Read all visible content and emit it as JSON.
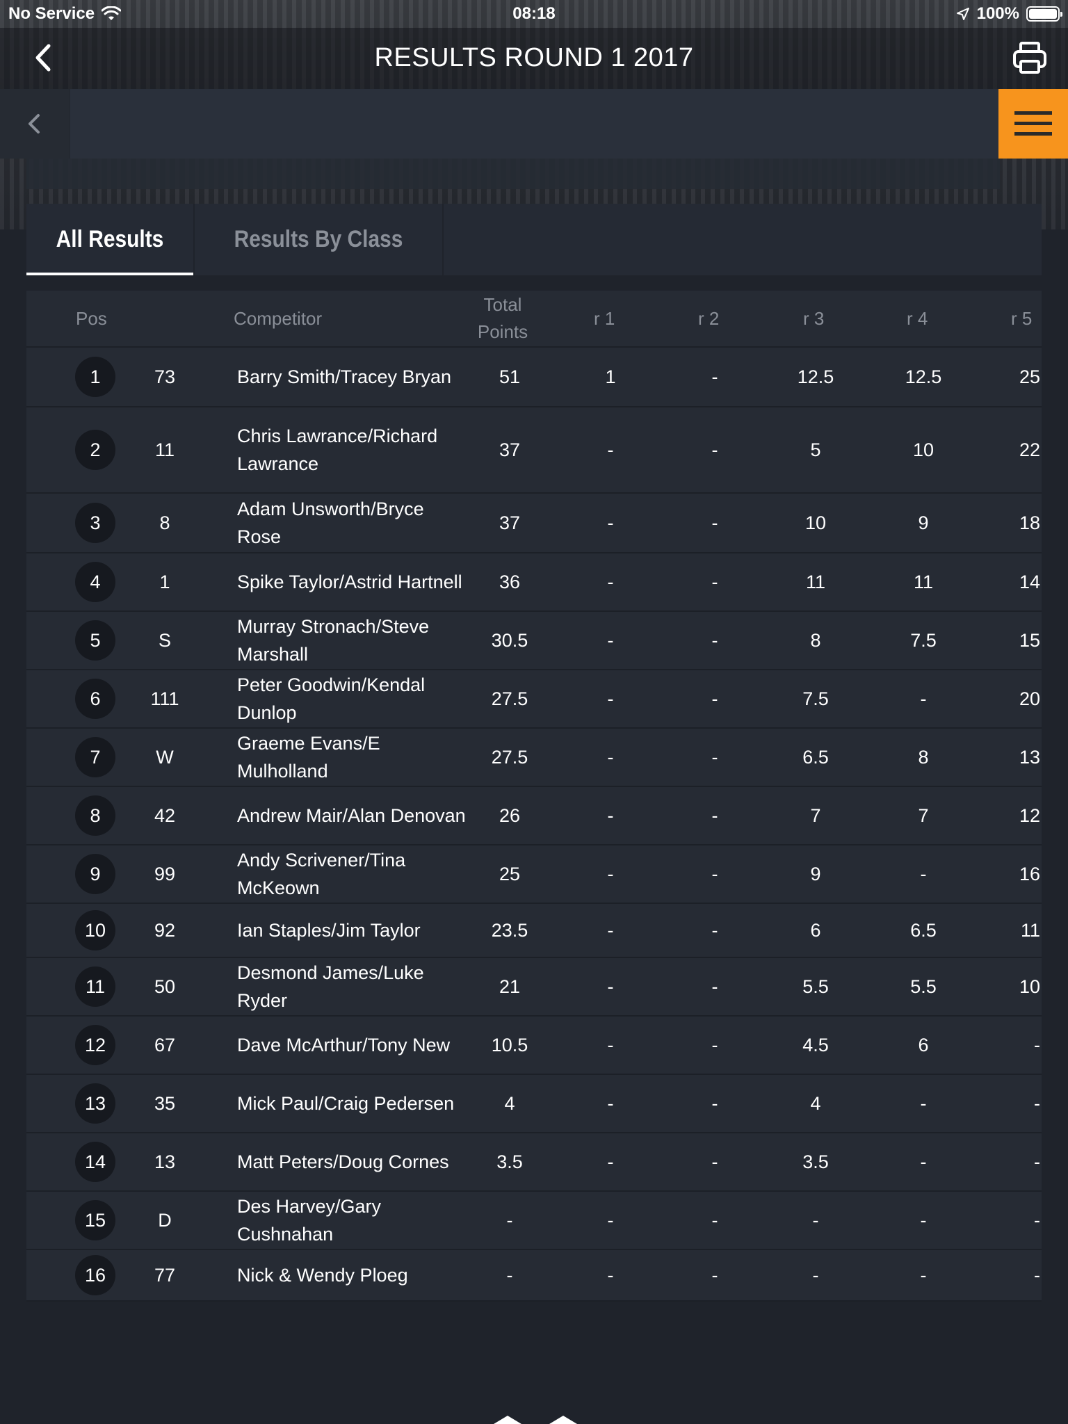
{
  "status": {
    "carrier": "No Service",
    "time": "08:18",
    "battery": "100%"
  },
  "nav": {
    "title": "RESULTS ROUND 1 2017"
  },
  "tabs": [
    {
      "label": "All Results",
      "active": true
    },
    {
      "label": "Results By Class",
      "active": false
    }
  ],
  "table": {
    "headers": {
      "pos": "Pos",
      "competitor": "Competitor",
      "total_line1": "Total",
      "total_line2": "Points",
      "r1": "r 1",
      "r2": "r 2",
      "r3": "r 3",
      "r4": "r 4",
      "r5": "r 5"
    },
    "rows": [
      {
        "pos": "1",
        "num": "73",
        "competitor": "Barry Smith/Tracey Bryan",
        "total": "51",
        "r1": "1",
        "r2": "-",
        "r3": "12.5",
        "r4": "12.5",
        "r5": "25"
      },
      {
        "pos": "2",
        "num": "11",
        "competitor": "Chris Lawrance/Richard Lawrance",
        "total": "37",
        "r1": "-",
        "r2": "-",
        "r3": "5",
        "r4": "10",
        "r5": "22"
      },
      {
        "pos": "3",
        "num": "8",
        "competitor": "Adam Unsworth/Bryce Rose",
        "total": "37",
        "r1": "-",
        "r2": "-",
        "r3": "10",
        "r4": "9",
        "r5": "18"
      },
      {
        "pos": "4",
        "num": "1",
        "competitor": "Spike Taylor/Astrid Hartnell",
        "total": "36",
        "r1": "-",
        "r2": "-",
        "r3": "11",
        "r4": "11",
        "r5": "14"
      },
      {
        "pos": "5",
        "num": "S",
        "competitor": "Murray Stronach/Steve Marshall",
        "total": "30.5",
        "r1": "-",
        "r2": "-",
        "r3": "8",
        "r4": "7.5",
        "r5": "15"
      },
      {
        "pos": "6",
        "num": "111",
        "competitor": "Peter Goodwin/Kendal Dunlop",
        "total": "27.5",
        "r1": "-",
        "r2": "-",
        "r3": "7.5",
        "r4": "-",
        "r5": "20"
      },
      {
        "pos": "7",
        "num": "W",
        "competitor": "Graeme Evans/E Mulholland",
        "total": "27.5",
        "r1": "-",
        "r2": "-",
        "r3": "6.5",
        "r4": "8",
        "r5": "13"
      },
      {
        "pos": "8",
        "num": "42",
        "competitor": "Andrew Mair/Alan Denovan",
        "total": "26",
        "r1": "-",
        "r2": "-",
        "r3": "7",
        "r4": "7",
        "r5": "12"
      },
      {
        "pos": "9",
        "num": "99",
        "competitor": "Andy Scrivener/Tina McKeown",
        "total": "25",
        "r1": "-",
        "r2": "-",
        "r3": "9",
        "r4": "-",
        "r5": "16"
      },
      {
        "pos": "10",
        "num": "92",
        "competitor": "Ian Staples/Jim Taylor",
        "total": "23.5",
        "r1": "-",
        "r2": "-",
        "r3": "6",
        "r4": "6.5",
        "r5": "11"
      },
      {
        "pos": "11",
        "num": "50",
        "competitor": "Desmond James/Luke Ryder",
        "total": "21",
        "r1": "-",
        "r2": "-",
        "r3": "5.5",
        "r4": "5.5",
        "r5": "10"
      },
      {
        "pos": "12",
        "num": "67",
        "competitor": "Dave McArthur/Tony New",
        "total": "10.5",
        "r1": "-",
        "r2": "-",
        "r3": "4.5",
        "r4": "6",
        "r5": "-"
      },
      {
        "pos": "13",
        "num": "35",
        "competitor": "Mick Paul/Craig Pedersen",
        "total": "4",
        "r1": "-",
        "r2": "-",
        "r3": "4",
        "r4": "-",
        "r5": "-"
      },
      {
        "pos": "14",
        "num": "13",
        "competitor": "Matt Peters/Doug Cornes",
        "total": "3.5",
        "r1": "-",
        "r2": "-",
        "r3": "3.5",
        "r4": "-",
        "r5": "-"
      },
      {
        "pos": "15",
        "num": "D",
        "competitor": "Des Harvey/Gary Cushnahan",
        "total": "-",
        "r1": "-",
        "r2": "-",
        "r3": "-",
        "r4": "-",
        "r5": "-"
      },
      {
        "pos": "16",
        "num": "77",
        "competitor": "Nick & Wendy Ploeg",
        "total": "-",
        "r1": "-",
        "r2": "-",
        "r3": "-",
        "r4": "-",
        "r5": "-"
      }
    ]
  },
  "icons": {
    "back": "chevron-left-icon",
    "print": "printer-icon",
    "menu": "hamburger-menu-icon",
    "wifi": "wifi-icon",
    "location": "location-arrow-icon",
    "battery": "battery-icon"
  },
  "colors": {
    "accent": "#f7941d",
    "background": "#1f232b",
    "panel": "#262b34"
  }
}
